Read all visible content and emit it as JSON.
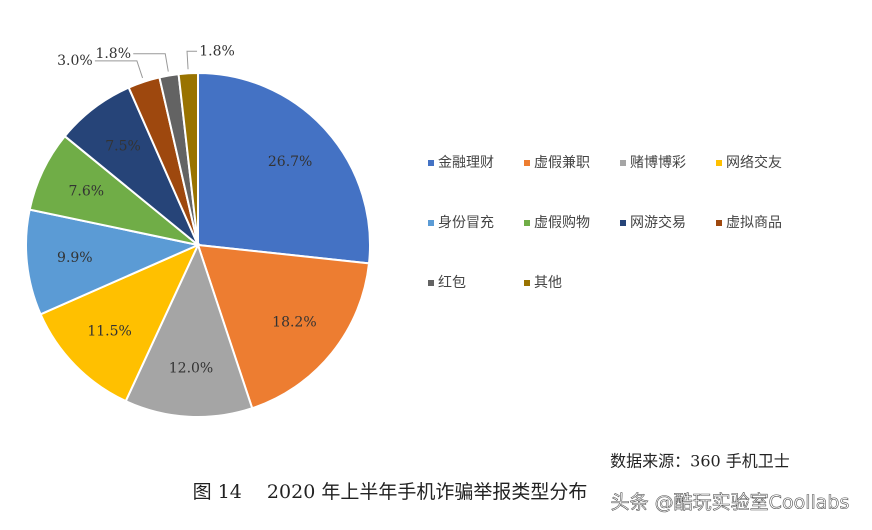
{
  "chart_data": {
    "type": "pie",
    "categories": [
      "金融理财",
      "虚假兼职",
      "赌博博彩",
      "网络交友",
      "身份冒充",
      "虚假购物",
      "网游交易",
      "虚拟商品",
      "红包",
      "其他"
    ],
    "values": [
      26.7,
      18.2,
      12.0,
      11.5,
      9.9,
      7.6,
      7.5,
      3.0,
      1.8,
      1.8
    ],
    "value_labels": [
      "26.7%",
      "18.2%",
      "12.0%",
      "11.5%",
      "9.9%",
      "7.6%",
      "7.5%",
      "3.0%",
      "1.8%",
      "1.8%"
    ],
    "colors": [
      "#4472c4",
      "#ed7d31",
      "#a5a5a5",
      "#ffc000",
      "#5b9bd5",
      "#70ad47",
      "#264478",
      "#9e480e",
      "#636363",
      "#997300"
    ],
    "source": "数据来源：360 手机卫士",
    "caption": "图 14　 2020 年上半年手机诈骗举报类型分布",
    "watermark": "头条 @酷玩实验室Coollabs"
  }
}
